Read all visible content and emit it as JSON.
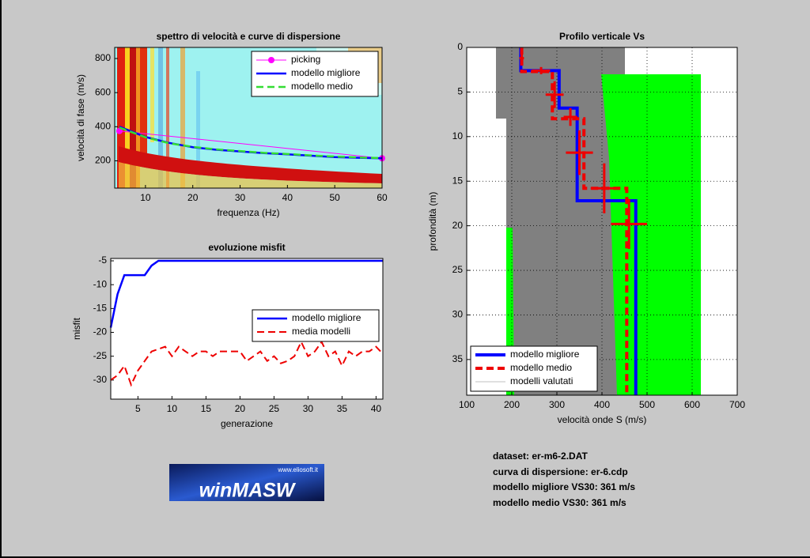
{
  "chart_data": [
    {
      "type": "line",
      "title": "spettro di velocità e curve di dispersione",
      "xlabel": "frequenza (Hz)",
      "ylabel": "velocità di fase (m/s)",
      "xlim": [
        3.5,
        60
      ],
      "xticks": [
        10,
        20,
        30,
        40,
        50,
        60
      ],
      "ylim": [
        40,
        865
      ],
      "yticks": [
        200,
        400,
        600,
        800
      ],
      "grid": false,
      "legend": "upper right",
      "series": [
        {
          "name": "picking",
          "color": "#ff00ff",
          "linewidth": 1,
          "style": "solid",
          "marker": "circle",
          "x": [
            4.5,
            60
          ],
          "values": [
            375,
            215
          ]
        },
        {
          "name": "modello migliore",
          "color": "#0000ff",
          "linewidth": 2.5,
          "style": "solid",
          "x": [
            4.5,
            10,
            15,
            20,
            25,
            30,
            35,
            40,
            45,
            50,
            55,
            60
          ],
          "values": [
            400,
            340,
            305,
            280,
            265,
            255,
            245,
            238,
            230,
            222,
            218,
            215
          ]
        },
        {
          "name": "modello medio",
          "color": "#33dd33",
          "linewidth": 2.5,
          "style": "dashed",
          "x": [
            4.5,
            10,
            15,
            20,
            25,
            30,
            35,
            40,
            45,
            50,
            55,
            60
          ],
          "values": [
            395,
            338,
            303,
            282,
            267,
            257,
            247,
            240,
            232,
            225,
            220,
            216
          ]
        }
      ]
    },
    {
      "type": "line",
      "title": "evoluzione misfit",
      "xlabel": "generazione",
      "ylabel": "misfit",
      "xlim": [
        1,
        41
      ],
      "xticks": [
        5,
        10,
        15,
        20,
        25,
        30,
        35,
        40
      ],
      "ylim": [
        -34,
        -4.5
      ],
      "yticks": [
        -30,
        -25,
        -20,
        -15,
        -10,
        -5
      ],
      "grid": false,
      "legend": "right",
      "x": [
        1,
        2,
        3,
        4,
        5,
        6,
        7,
        8,
        9,
        10,
        11,
        12,
        13,
        14,
        15,
        16,
        17,
        18,
        19,
        20,
        21,
        22,
        23,
        24,
        25,
        26,
        27,
        28,
        29,
        30,
        31,
        32,
        33,
        34,
        35,
        36,
        37,
        38,
        39,
        40,
        41
      ],
      "series": [
        {
          "name": "modello migliore",
          "color": "#0000ff",
          "linewidth": 2.5,
          "style": "solid",
          "values": [
            -19,
            -12,
            -8,
            -8,
            -8,
            -8,
            -6,
            -5,
            -5,
            -5,
            -5,
            -5,
            -5,
            -5,
            -5,
            -5,
            -5,
            -5,
            -5,
            -5,
            -5,
            -5,
            -5,
            -5,
            -5,
            -5,
            -5,
            -5,
            -5,
            -5,
            -5,
            -5,
            -5,
            -5,
            -5,
            -5,
            -5,
            -5,
            -5,
            -5,
            -5
          ]
        },
        {
          "name": "media modelli",
          "color": "#ee0000",
          "linewidth": 2,
          "style": "dashed",
          "values": [
            -30,
            -29,
            -27,
            -31,
            -28,
            -26,
            -24,
            -23.5,
            -23,
            -25,
            -23,
            -24,
            -25,
            -24,
            -24,
            -25,
            -24,
            -24,
            -24,
            -24,
            -26,
            -25,
            -24,
            -26,
            -25,
            -26.5,
            -26,
            -25,
            -22,
            -25,
            -24,
            -22,
            -25,
            -24,
            -27,
            -24,
            -25,
            -24,
            -24,
            -23,
            -24.5
          ]
        }
      ]
    },
    {
      "type": "line",
      "title": "Profilo verticale Vs",
      "xlabel": "velocità onde S (m/s)",
      "ylabel": "profondità (m)",
      "xlim": [
        100,
        700
      ],
      "xticks": [
        100,
        200,
        300,
        400,
        500,
        600,
        700
      ],
      "ylim": [
        0,
        39
      ],
      "yticks": [
        0,
        5,
        10,
        15,
        20,
        25,
        30,
        35
      ],
      "y_reversed": true,
      "grid": true,
      "legend": "lower left",
      "series": [
        {
          "name": "modello migliore",
          "color": "#0000ff",
          "linewidth": 4,
          "style": "solid",
          "x": [
            220,
            220,
            305,
            305,
            345,
            345,
            475,
            475
          ],
          "values": [
            0,
            2.6,
            2.6,
            6.8,
            6.8,
            17.2,
            17.2,
            39
          ]
        },
        {
          "name": "modello medio",
          "color": "#ee0000",
          "linewidth": 4,
          "style": "dashed",
          "x": [
            222,
            222,
            290,
            290,
            360,
            360,
            455,
            455
          ],
          "values": [
            0,
            2.7,
            2.7,
            8,
            8,
            15.8,
            15.8,
            39
          ],
          "error_points": {
            "x": [
              222,
              265,
              295,
              330,
              350,
              405,
              460
            ],
            "y": [
              1.2,
              2.6,
              5.3,
              7.8,
              11.8,
              15.8,
              19.8
            ],
            "xerr": [
              5,
              20,
              20,
              15,
              30,
              30,
              40
            ],
            "yerr": [
              0.8,
              0.4,
              1.5,
              1,
              2.5,
              2.8,
              2.8
            ]
          }
        },
        {
          "name": "modelli valutati",
          "color": "#808080",
          "linewidth": 0.6,
          "style": "solid"
        }
      ]
    }
  ],
  "info": [
    "dataset: er-m6-2.DAT",
    "curva di dispersione: er-6.cdp",
    "modello migliore VS30: 361 m/s",
    "modello medio VS30: 361 m/s"
  ],
  "logo": {
    "url": "www.eliosoft.it",
    "name": "winMASW"
  }
}
